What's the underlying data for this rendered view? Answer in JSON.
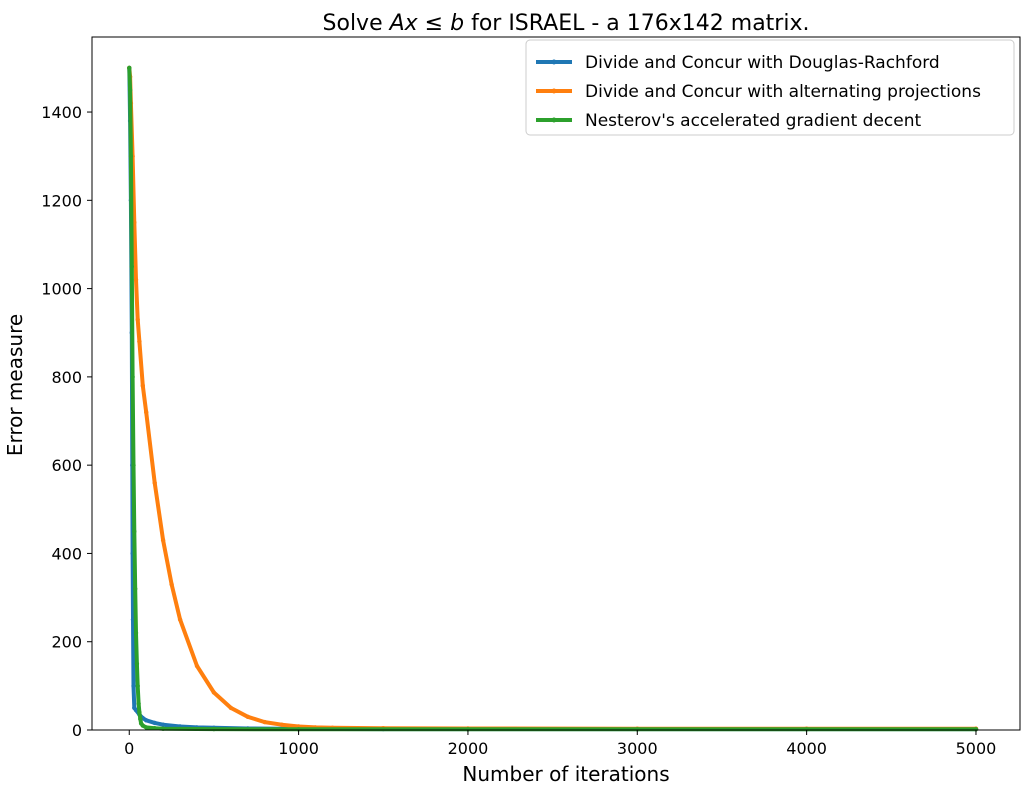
{
  "chart_data": {
    "type": "line",
    "title": {
      "prefix": "Solve ",
      "math_a": "Ax",
      "math_op": " ≤ ",
      "math_b": "b",
      "suffix": " for ISRAEL - a 176x142 matrix."
    },
    "xlabel": "Number of iterations",
    "ylabel": "Error measure",
    "xlim": [
      -220,
      5260
    ],
    "ylim": [
      0,
      1570
    ],
    "xticks": [
      0,
      1000,
      2000,
      3000,
      4000,
      5000
    ],
    "yticks": [
      0,
      200,
      400,
      600,
      800,
      1000,
      1200,
      1400
    ],
    "grid": false,
    "legend_position": "top-right",
    "series": [
      {
        "name": "Divide and Concur with Douglas-Rachford",
        "color": "#1f77b4",
        "x": [
          0,
          5,
          10,
          15,
          18,
          20,
          22,
          25,
          30,
          40,
          60,
          80,
          100,
          150,
          200,
          300,
          400,
          500,
          700,
          1000,
          1500,
          2000,
          3000,
          4000,
          5000
        ],
        "y": [
          1500,
          1380,
          1200,
          900,
          600,
          400,
          250,
          100,
          50,
          45,
          35,
          27,
          22,
          16,
          12,
          8,
          6,
          5,
          3.5,
          2.5,
          2,
          2,
          2,
          2,
          2
        ]
      },
      {
        "name": "Divide and Concur with alternating projections",
        "color": "#ff7f0e",
        "x": [
          0,
          5,
          10,
          20,
          30,
          40,
          50,
          60,
          80,
          100,
          150,
          200,
          250,
          300,
          400,
          500,
          600,
          700,
          800,
          900,
          1000,
          1100,
          1200,
          1500,
          2000,
          3000,
          4000,
          5000
        ],
        "y": [
          1500,
          1480,
          1420,
          1300,
          1150,
          1020,
          930,
          880,
          780,
          720,
          560,
          430,
          330,
          250,
          145,
          85,
          50,
          30,
          18,
          12,
          8,
          6,
          5,
          4,
          3.5,
          3,
          3,
          3
        ]
      },
      {
        "name": "Nesterov's accelerated gradient decent",
        "color": "#2ca02c",
        "x": [
          0,
          5,
          10,
          15,
          20,
          25,
          30,
          35,
          40,
          45,
          50,
          55,
          60,
          65,
          70,
          80,
          100,
          150,
          200,
          500,
          1000,
          2000,
          3000,
          4000,
          5000
        ],
        "y": [
          1500,
          1450,
          1300,
          1050,
          800,
          600,
          450,
          320,
          220,
          150,
          100,
          60,
          40,
          25,
          15,
          10,
          6,
          4,
          3,
          2,
          1.5,
          1.5,
          1.5,
          1.5,
          1.5
        ]
      }
    ]
  }
}
